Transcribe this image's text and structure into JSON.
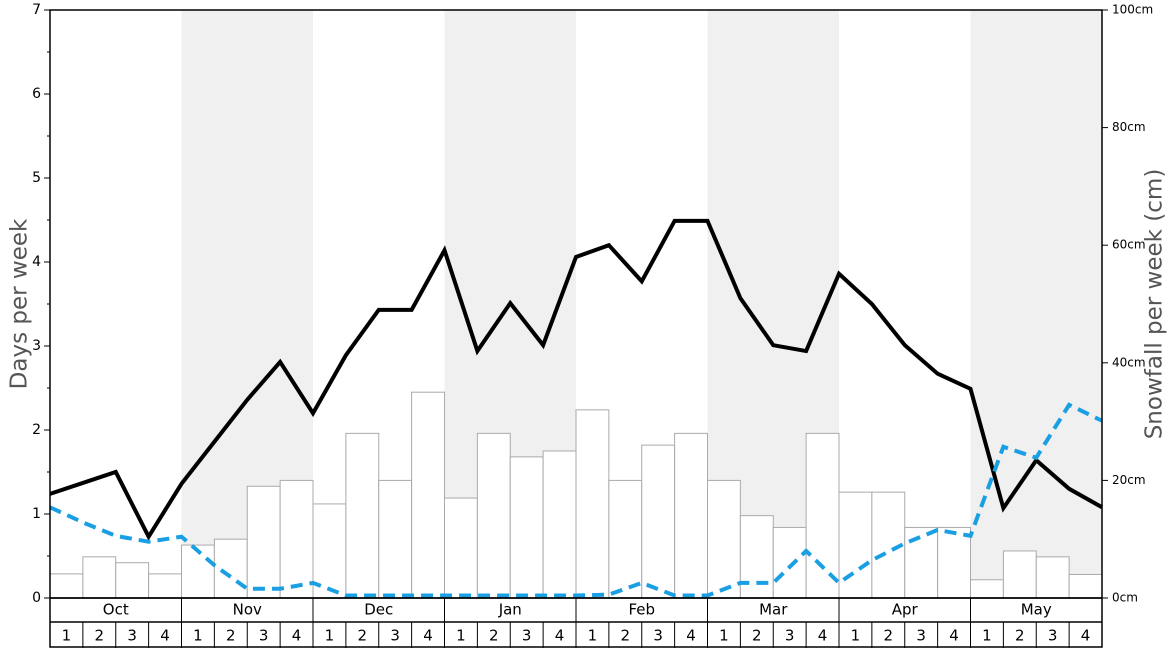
{
  "chart_data": {
    "type": "bar-line",
    "ylabel": "Days per week",
    "y2label": "Snowfall per week (cm)",
    "months": [
      "Oct",
      "Nov",
      "Dec",
      "Jan",
      "Feb",
      "Mar",
      "Apr",
      "May"
    ],
    "week_labels": [
      1,
      2,
      3,
      4
    ],
    "shaded_months": [
      false,
      true,
      false,
      true,
      false,
      true,
      false,
      true
    ],
    "ylim": [
      0,
      7
    ],
    "yticks": [
      0,
      1,
      2,
      3,
      4,
      5,
      6,
      7
    ],
    "y2lim": [
      0,
      100
    ],
    "y2ticks": [
      {
        "value": 0,
        "label": "0cm"
      },
      {
        "value": 20,
        "label": "20cm"
      },
      {
        "value": 40,
        "label": "40cm"
      },
      {
        "value": 60,
        "label": "60cm"
      },
      {
        "value": 80,
        "label": "80cm"
      },
      {
        "value": 100,
        "label": "100cm"
      }
    ],
    "bars": {
      "axis": "y2",
      "color": "#ffffff",
      "values": [
        4.1,
        7,
        6,
        4.1,
        9,
        10,
        19,
        20,
        16,
        28,
        20,
        35,
        17,
        28,
        24,
        25,
        32,
        20,
        26,
        28,
        20,
        14,
        12,
        28,
        18,
        18,
        12,
        12,
        3.1,
        8,
        7,
        4
      ]
    },
    "series": [
      {
        "color": "#000000",
        "dashed": false,
        "values": [
          1.24,
          1.37,
          1.5,
          0.73,
          1.36,
          1.86,
          2.36,
          2.81,
          2.2,
          2.89,
          3.43,
          3.43,
          4.14,
          2.94,
          3.51,
          3.01,
          4.06,
          4.2,
          3.77,
          4.49,
          4.49,
          3.57,
          3.01,
          2.94,
          3.86,
          3.5,
          3.01,
          2.67,
          2.49,
          1.07,
          1.64,
          1.3,
          1.08
        ]
      },
      {
        "color": "#1a9fe3",
        "dashed": true,
        "values": [
          1.08,
          0.9,
          0.74,
          0.67,
          0.73,
          0.39,
          0.11,
          0.11,
          0.18,
          0.03,
          0.03,
          0.03,
          0.03,
          0.03,
          0.03,
          0.03,
          0.03,
          0.04,
          0.18,
          0.03,
          0.03,
          0.18,
          0.18,
          0.56,
          0.18,
          0.45,
          0.65,
          0.81,
          0.74,
          1.8,
          1.67,
          2.3,
          2.11
        ]
      }
    ]
  }
}
